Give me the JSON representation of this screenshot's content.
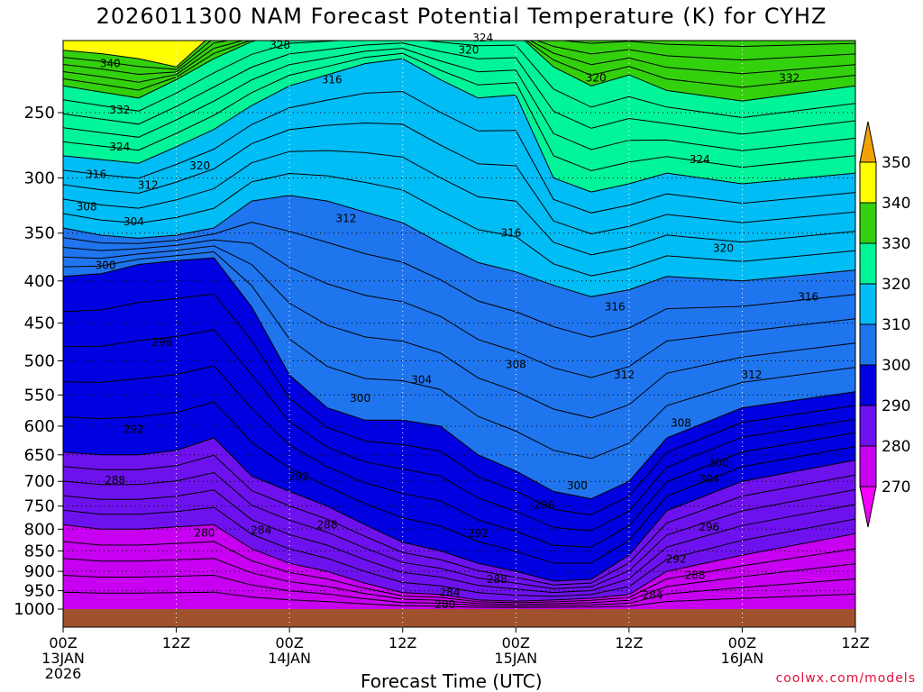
{
  "chart_data": {
    "type": "heatmap",
    "title": "2026011300 NAM Forecast Potential Temperature (K) for CYHZ",
    "xlabel": "Forecast Time (UTC)",
    "ylabel": "",
    "credit": "coolwx.com/models",
    "y_ticks": [
      "250",
      "300",
      "350",
      "400",
      "450",
      "500",
      "550",
      "600",
      "650",
      "700",
      "750",
      "800",
      "850",
      "900",
      "950",
      "1000"
    ],
    "y_tick_values": [
      250,
      300,
      350,
      400,
      450,
      500,
      550,
      600,
      650,
      700,
      750,
      800,
      850,
      900,
      950,
      1000
    ],
    "x_ticks": [
      {
        "hour": 0,
        "line1": "00Z",
        "line2": "13JAN",
        "line3": "2026"
      },
      {
        "hour": 12,
        "line1": "12Z",
        "line2": "",
        "line3": ""
      },
      {
        "hour": 24,
        "line1": "00Z",
        "line2": "14JAN",
        "line3": ""
      },
      {
        "hour": 36,
        "line1": "12Z",
        "line2": "",
        "line3": ""
      },
      {
        "hour": 48,
        "line1": "00Z",
        "line2": "15JAN",
        "line3": ""
      },
      {
        "hour": 60,
        "line1": "12Z",
        "line2": "",
        "line3": ""
      },
      {
        "hour": 72,
        "line1": "00Z",
        "line2": "16JAN",
        "line3": ""
      },
      {
        "hour": 84,
        "line1": "12Z",
        "line2": "",
        "line3": ""
      }
    ],
    "xlim_hours": [
      0,
      84
    ],
    "ylim_hpa": [
      200,
      1030
    ],
    "colorbar": {
      "labels": [
        "350",
        "340",
        "330",
        "320",
        "310",
        "300",
        "290",
        "280",
        "270"
      ],
      "bands": [
        {
          "min": 350,
          "max": 360,
          "color": "#f2a200"
        },
        {
          "min": 340,
          "max": 350,
          "color": "#ffff00"
        },
        {
          "min": 330,
          "max": 340,
          "color": "#33d10c"
        },
        {
          "min": 320,
          "max": 330,
          "color": "#00f598"
        },
        {
          "min": 310,
          "max": 320,
          "color": "#00bdf5"
        },
        {
          "min": 300,
          "max": 310,
          "color": "#1f75ee"
        },
        {
          "min": 290,
          "max": 300,
          "color": "#0000e0"
        },
        {
          "min": 280,
          "max": 290,
          "color": "#6d12ee"
        },
        {
          "min": 270,
          "max": 280,
          "color": "#c700f2"
        },
        {
          "min": 260,
          "max": 270,
          "color": "#f400ff"
        }
      ]
    },
    "ground_color": "#a0522d",
    "series": [
      {
        "theta": 340,
        "p": [
          210,
          212,
          215,
          220,
          200,
          200,
          200,
          200,
          200,
          200,
          200,
          200,
          200,
          200,
          200,
          200,
          200,
          200,
          200
        ]
      },
      {
        "theta": 330,
        "p": [
          232,
          236,
          240,
          228,
          215,
          205,
          200,
          200,
          200,
          200,
          200,
          200,
          200,
          220,
          232,
          225,
          235,
          242,
          232
        ]
      },
      {
        "theta": 320,
        "p": [
          282,
          285,
          288,
          275,
          262,
          245,
          232,
          225,
          218,
          215,
          228,
          240,
          238,
          300,
          312,
          305,
          296,
          305,
          296
        ]
      },
      {
        "theta": 310,
        "p": [
          345,
          352,
          355,
          352,
          345,
          320,
          315,
          320,
          330,
          340,
          360,
          380,
          390,
          405,
          418,
          410,
          395,
          400,
          388
        ]
      },
      {
        "theta": 300,
        "p": [
          395,
          392,
          382,
          378,
          375,
          430,
          520,
          570,
          590,
          590,
          600,
          650,
          680,
          720,
          735,
          700,
          620,
          570,
          545
        ]
      },
      {
        "theta": 290,
        "p": [
          645,
          650,
          650,
          642,
          620,
          690,
          720,
          750,
          790,
          830,
          850,
          880,
          900,
          925,
          920,
          860,
          760,
          700,
          660
        ]
      },
      {
        "theta": 280,
        "p": [
          790,
          800,
          800,
          795,
          790,
          845,
          880,
          900,
          930,
          955,
          960,
          975,
          978,
          975,
          970,
          960,
          900,
          860,
          810
        ]
      },
      {
        "theta": 270,
        "p": [
          1030,
          1030,
          1030,
          1030,
          1030,
          1030,
          1030,
          1030,
          1030,
          1030,
          1030,
          1030,
          1030,
          1030,
          1030,
          1030,
          1030,
          1030,
          1030
        ]
      }
    ],
    "series_hours": [
      0,
      4,
      8,
      12,
      16,
      20,
      24,
      28,
      32,
      36,
      40,
      44,
      48,
      52,
      56,
      60,
      64,
      72,
      84
    ],
    "contour_labels": [
      {
        "text": "340",
        "hour": 5.0,
        "p": 218
      },
      {
        "text": "332",
        "hour": 6.0,
        "p": 248
      },
      {
        "text": "324",
        "hour": 6.0,
        "p": 275
      },
      {
        "text": "316",
        "hour": 3.5,
        "p": 297
      },
      {
        "text": "312",
        "hour": 9.0,
        "p": 306
      },
      {
        "text": "320",
        "hour": 14.5,
        "p": 290
      },
      {
        "text": "308",
        "hour": 2.5,
        "p": 325
      },
      {
        "text": "304",
        "hour": 7.5,
        "p": 339
      },
      {
        "text": "300",
        "hour": 4.5,
        "p": 383
      },
      {
        "text": "296",
        "hour": 10.5,
        "p": 475
      },
      {
        "text": "292",
        "hour": 7.5,
        "p": 605
      },
      {
        "text": "288",
        "hour": 5.5,
        "p": 698
      },
      {
        "text": "280",
        "hour": 15.0,
        "p": 808
      },
      {
        "text": "284",
        "hour": 21.0,
        "p": 802
      },
      {
        "text": "288",
        "hour": 28.0,
        "p": 790
      },
      {
        "text": "292",
        "hour": 25.0,
        "p": 690
      },
      {
        "text": "300",
        "hour": 31.5,
        "p": 555
      },
      {
        "text": "304",
        "hour": 38.0,
        "p": 527
      },
      {
        "text": "308",
        "hour": 48.0,
        "p": 505
      },
      {
        "text": "312",
        "hour": 30.0,
        "p": 336
      },
      {
        "text": "316",
        "hour": 28.5,
        "p": 228
      },
      {
        "text": "328",
        "hour": 23.0,
        "p": 207
      },
      {
        "text": "324",
        "hour": 44.5,
        "p": 203
      },
      {
        "text": "320",
        "hour": 43.0,
        "p": 210
      },
      {
        "text": "320",
        "hour": 56.5,
        "p": 227
      },
      {
        "text": "316",
        "hour": 47.5,
        "p": 350
      },
      {
        "text": "316",
        "hour": 58.5,
        "p": 430
      },
      {
        "text": "312",
        "hour": 59.5,
        "p": 520
      },
      {
        "text": "308",
        "hour": 65.5,
        "p": 595
      },
      {
        "text": "304",
        "hour": 68.5,
        "p": 695
      },
      {
        "text": "300",
        "hour": 54.5,
        "p": 708
      },
      {
        "text": "300",
        "hour": 69.5,
        "p": 665
      },
      {
        "text": "296",
        "hour": 51.0,
        "p": 748
      },
      {
        "text": "292",
        "hour": 44.0,
        "p": 810
      },
      {
        "text": "288",
        "hour": 46.0,
        "p": 920
      },
      {
        "text": "284",
        "hour": 41.0,
        "p": 955
      },
      {
        "text": "280",
        "hour": 40.5,
        "p": 988
      },
      {
        "text": "284",
        "hour": 62.5,
        "p": 962
      },
      {
        "text": "288",
        "hour": 67.0,
        "p": 910
      },
      {
        "text": "292",
        "hour": 65.0,
        "p": 870
      },
      {
        "text": "296",
        "hour": 68.5,
        "p": 795
      },
      {
        "text": "312",
        "hour": 73.0,
        "p": 520
      },
      {
        "text": "320",
        "hour": 70.0,
        "p": 365
      },
      {
        "text": "324",
        "hour": 67.5,
        "p": 285
      },
      {
        "text": "332",
        "hour": 77.0,
        "p": 227
      },
      {
        "text": "316",
        "hour": 79.0,
        "p": 418
      }
    ]
  }
}
